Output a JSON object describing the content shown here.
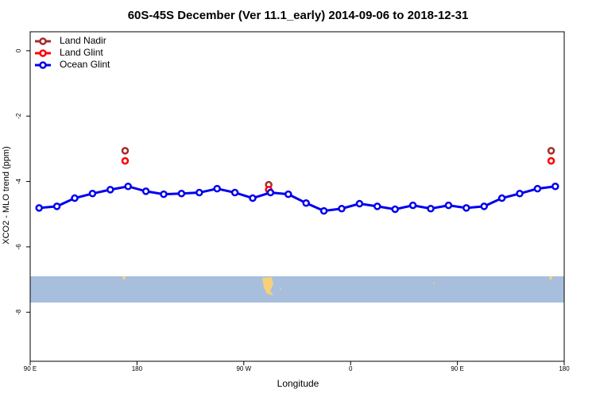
{
  "chart_data": {
    "type": "line",
    "title": "60S-45S December (Ver 11.1_early)   2014-09-06 to 2018-12-31",
    "xlabel": "Longitude",
    "ylabel": "XCO2 - MLO trend (ppm)",
    "xlim": [
      90,
      540
    ],
    "ylim": [
      -9.5,
      0.58
    ],
    "xticks": [
      {
        "value": 90,
        "label": "90 E"
      },
      180,
      {
        "value": 270,
        "label": "90 W"
      },
      {
        "value": 360,
        "label": "0"
      },
      {
        "value": 450,
        "label": "90 E"
      },
      {
        "value": 540,
        "label": "180"
      }
    ],
    "yticks": [
      0,
      -2,
      -4,
      -6,
      -8
    ],
    "legend": "top-left",
    "series": [
      {
        "name": "Land Nadir",
        "color": "#a52a2a",
        "line": false,
        "x": [
          170,
          291,
          529
        ],
        "values": [
          -3.06,
          -4.1,
          -3.06
        ]
      },
      {
        "name": "Land Glint",
        "color": "#ff0000",
        "line": false,
        "x": [
          170,
          291,
          529
        ],
        "values": [
          -3.37,
          -4.25,
          -3.37
        ]
      },
      {
        "name": "Ocean Glint",
        "color": "#0000ee",
        "line": true,
        "x": [
          97.5,
          112.5,
          127.5,
          142.5,
          157.5,
          172.5,
          187.5,
          202.5,
          217.5,
          232.5,
          247.5,
          262.5,
          277.5,
          292.5,
          307.5,
          322.5,
          337.5,
          352.5,
          367.5,
          382.5,
          397.5,
          412.5,
          427.5,
          442.5,
          457.5,
          472.5,
          487.5,
          502.5,
          517.5,
          532.5
        ],
        "values": [
          -4.81,
          -4.76,
          -4.51,
          -4.37,
          -4.25,
          -4.15,
          -4.3,
          -4.39,
          -4.37,
          -4.34,
          -4.22,
          -4.34,
          -4.51,
          -4.34,
          -4.39,
          -4.66,
          -4.9,
          -4.83,
          -4.68,
          -4.76,
          -4.85,
          -4.73,
          -4.83,
          -4.73,
          -4.81,
          -4.76,
          -4.51,
          -4.37,
          -4.22,
          -4.15
        ]
      }
    ]
  }
}
